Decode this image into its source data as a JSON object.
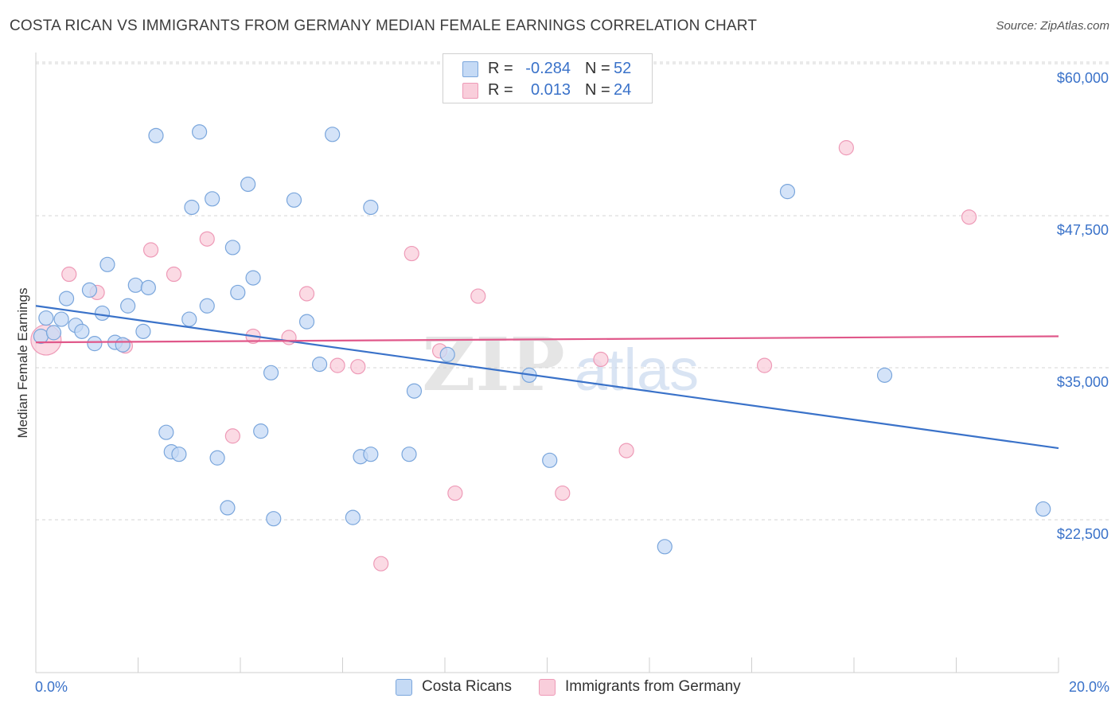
{
  "title": "COSTA RICAN VS IMMIGRANTS FROM GERMANY MEDIAN FEMALE EARNINGS CORRELATION CHART",
  "source": "Source: ZipAtlas.com",
  "watermark": {
    "zip": "ZIP",
    "atlas": "atlas"
  },
  "colors": {
    "blue": "#3a72c9",
    "blue_fill": "#c5daf5",
    "blue_stroke": "#7aa6dc",
    "pink": "#e0588a",
    "pink_fill": "#f9cedb",
    "pink_stroke": "#ee9ab7",
    "grid": "#d6d6d6",
    "axis_label": "#3a72c9"
  },
  "legend_top": {
    "rows": [
      {
        "series": "blue",
        "r_label": "R =",
        "r_value": "-0.284",
        "n_label": "N =",
        "n_value": "52"
      },
      {
        "series": "pink",
        "r_label": "R =",
        "r_value": "0.013",
        "n_label": "N =",
        "n_value": "24"
      }
    ]
  },
  "legend_bottom": [
    {
      "series": "blue",
      "label": "Costa Ricans"
    },
    {
      "series": "pink",
      "label": "Immigrants from Germany"
    }
  ],
  "chart_data": {
    "type": "scatter",
    "title": "COSTA RICAN VS IMMIGRANTS FROM GERMANY MEDIAN FEMALE EARNINGS CORRELATION CHART",
    "xlabel": "",
    "ylabel": "Median Female Earnings",
    "xlim": [
      0,
      20
    ],
    "ylim": [
      10000,
      62000
    ],
    "x_tick_labels": [
      "0.0%",
      "20.0%"
    ],
    "y_ticks": [
      22500,
      35000,
      47500,
      60000
    ],
    "y_tick_labels": [
      "$22,500",
      "$35,000",
      "$47,500",
      "$60,000"
    ],
    "grid": "horizontal dashed",
    "legend": "top-center",
    "series": [
      {
        "name": "Costa Ricans",
        "color": "#3a72c9",
        "R": -0.284,
        "N": 52,
        "trend": [
          [
            0.0,
            41200
          ],
          [
            20.0,
            29500
          ]
        ],
        "points": [
          [
            0.1,
            38700
          ],
          [
            0.2,
            40200
          ],
          [
            0.35,
            39000
          ],
          [
            0.5,
            40100
          ],
          [
            0.6,
            41800
          ],
          [
            0.78,
            39600
          ],
          [
            0.9,
            39100
          ],
          [
            1.15,
            38100
          ],
          [
            1.05,
            42500
          ],
          [
            1.3,
            40600
          ],
          [
            1.4,
            44600
          ],
          [
            1.55,
            38200
          ],
          [
            1.7,
            38000
          ],
          [
            1.8,
            41200
          ],
          [
            1.95,
            42900
          ],
          [
            2.1,
            39100
          ],
          [
            2.2,
            42700
          ],
          [
            2.35,
            55200
          ],
          [
            2.55,
            30800
          ],
          [
            2.65,
            29200
          ],
          [
            2.8,
            29000
          ],
          [
            3.0,
            40100
          ],
          [
            3.05,
            49300
          ],
          [
            3.2,
            55500
          ],
          [
            3.35,
            41200
          ],
          [
            3.45,
            50000
          ],
          [
            3.55,
            28700
          ],
          [
            3.75,
            24600
          ],
          [
            3.85,
            46000
          ],
          [
            3.95,
            42300
          ],
          [
            4.15,
            51200
          ],
          [
            4.25,
            43500
          ],
          [
            4.4,
            30900
          ],
          [
            4.6,
            35700
          ],
          [
            4.65,
            23700
          ],
          [
            5.05,
            49900
          ],
          [
            5.3,
            39900
          ],
          [
            5.55,
            36400
          ],
          [
            5.8,
            55300
          ],
          [
            6.2,
            23800
          ],
          [
            6.35,
            28800
          ],
          [
            6.55,
            29000
          ],
          [
            6.55,
            49300
          ],
          [
            7.3,
            29000
          ],
          [
            7.4,
            34200
          ],
          [
            8.05,
            37200
          ],
          [
            9.65,
            35500
          ],
          [
            10.05,
            28500
          ],
          [
            12.3,
            21400
          ],
          [
            14.7,
            50600
          ],
          [
            16.6,
            35500
          ],
          [
            19.7,
            24500
          ]
        ]
      },
      {
        "name": "Immigrants from Germany",
        "color": "#e0588a",
        "R": 0.013,
        "N": 24,
        "trend": [
          [
            0.0,
            38200
          ],
          [
            20.0,
            38700
          ]
        ],
        "points": [
          [
            0.2,
            38400
          ],
          [
            0.65,
            43800
          ],
          [
            1.2,
            42300
          ],
          [
            1.75,
            37900
          ],
          [
            2.25,
            45800
          ],
          [
            2.7,
            43800
          ],
          [
            3.35,
            46700
          ],
          [
            3.85,
            30500
          ],
          [
            4.25,
            38700
          ],
          [
            4.95,
            38600
          ],
          [
            5.3,
            42200
          ],
          [
            5.9,
            36300
          ],
          [
            6.3,
            36200
          ],
          [
            6.75,
            20000
          ],
          [
            7.35,
            45500
          ],
          [
            7.9,
            37500
          ],
          [
            8.2,
            25800
          ],
          [
            8.65,
            42000
          ],
          [
            10.3,
            25800
          ],
          [
            11.05,
            36800
          ],
          [
            11.55,
            29300
          ],
          [
            14.25,
            36300
          ],
          [
            15.85,
            54200
          ],
          [
            18.25,
            48500
          ]
        ]
      }
    ]
  }
}
